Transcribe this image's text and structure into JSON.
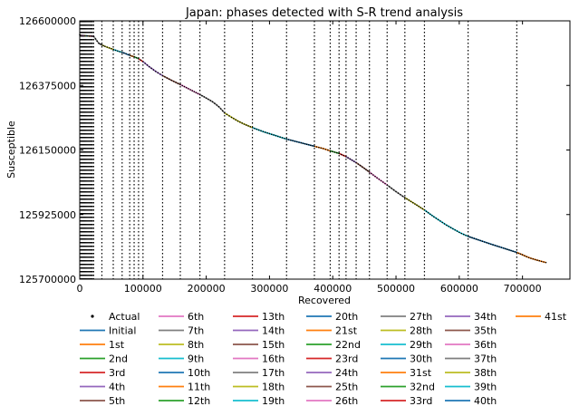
{
  "chart_data": {
    "type": "line",
    "title": "Japan: phases detected with S-R trend analysis",
    "xlabel": "Recovered",
    "ylabel": "Susceptible",
    "xlim": [
      0,
      775000
    ],
    "ylim": [
      125700000,
      126600000
    ],
    "x_ticks": [
      0,
      100000,
      200000,
      300000,
      400000,
      500000,
      600000,
      700000
    ],
    "x_tick_labels": [
      "0",
      "100000",
      "200000",
      "300000",
      "400000",
      "500000",
      "600000",
      "700000"
    ],
    "y_ticks": [
      125700000,
      125925000,
      126150000,
      126375000,
      126600000
    ],
    "y_tick_labels": [
      "125700000",
      "125925000",
      "126150000",
      "126375000",
      "126600000"
    ],
    "grid": false,
    "legend_position": "below plot, 7 columns",
    "phase_boundaries": [
      500,
      1200,
      2000,
      3000,
      4000,
      5000,
      6500,
      8000,
      9500,
      11000,
      12500,
      14000,
      15500,
      17000,
      18500,
      20000,
      22000,
      35000,
      53000,
      67000,
      79000,
      86000,
      93000,
      100000,
      131000,
      159000,
      190000,
      229000,
      273000,
      327000,
      371000,
      396000,
      410000,
      421000,
      437000,
      458000,
      486000,
      514000,
      545000,
      614000,
      691000
    ],
    "legend": [
      "Actual",
      "Initial",
      "1st",
      "2nd",
      "3rd",
      "4th",
      "5th",
      "6th",
      "7th",
      "8th",
      "9th",
      "10th",
      "11th",
      "12th",
      "13th",
      "14th",
      "15th",
      "16th",
      "17th",
      "18th",
      "19th",
      "20th",
      "21st",
      "22nd",
      "23rd",
      "24th",
      "25th",
      "26th",
      "27th",
      "28th",
      "29th",
      "30th",
      "31st",
      "32nd",
      "33rd",
      "34th",
      "35th",
      "36th",
      "37th",
      "38th",
      "39th",
      "40th",
      "41st"
    ],
    "palette": [
      "#1f77b4",
      "#ff7f0e",
      "#2ca02c",
      "#d62728",
      "#9467bd",
      "#8c564b",
      "#e377c2",
      "#7f7f7f",
      "#bcbd22",
      "#17becf"
    ],
    "actual_color": "#000000",
    "actual": {
      "x": [
        0,
        500,
        2000,
        5000,
        10000,
        15000,
        20000,
        22000,
        25000,
        30000,
        35000,
        40000,
        50000,
        60000,
        70000,
        80000,
        86000,
        93000,
        100000,
        110000,
        120000,
        131000,
        145000,
        159000,
        175000,
        190000,
        200000,
        210000,
        220000,
        229000,
        240000,
        250000,
        260000,
        273000,
        290000,
        310000,
        327000,
        350000,
        371000,
        385000,
        396000,
        410000,
        421000,
        437000,
        450000,
        458000,
        470000,
        486000,
        500000,
        514000,
        530000,
        545000,
        560000,
        580000,
        600000,
        614000,
        630000,
        650000,
        670000,
        691000,
        700000,
        710000,
        720000,
        730000,
        737000
      ],
      "y": [
        126552000,
        126550000,
        126549500,
        126549000,
        126548000,
        126547000,
        126546500,
        126546000,
        126537000,
        126522000,
        126516000,
        126511000,
        126503000,
        126495000,
        126488000,
        126479000,
        126475000,
        126468000,
        126458000,
        126440000,
        126424000,
        126409000,
        126393000,
        126378000,
        126360000,
        126343000,
        126331000,
        126318000,
        126301000,
        126279000,
        126264000,
        126251000,
        126240000,
        126228000,
        126214000,
        126200000,
        126188000,
        126175000,
        126163000,
        126155000,
        126147000,
        126138000,
        126127000,
        126106000,
        126086000,
        126073000,
        126053000,
        126028000,
        126005000,
        125984000,
        125962000,
        125941000,
        125917000,
        125888000,
        125863000,
        125849000,
        125837000,
        125822000,
        125808000,
        125793000,
        125785000,
        125775000,
        125768000,
        125762000,
        125758000
      ]
    }
  }
}
